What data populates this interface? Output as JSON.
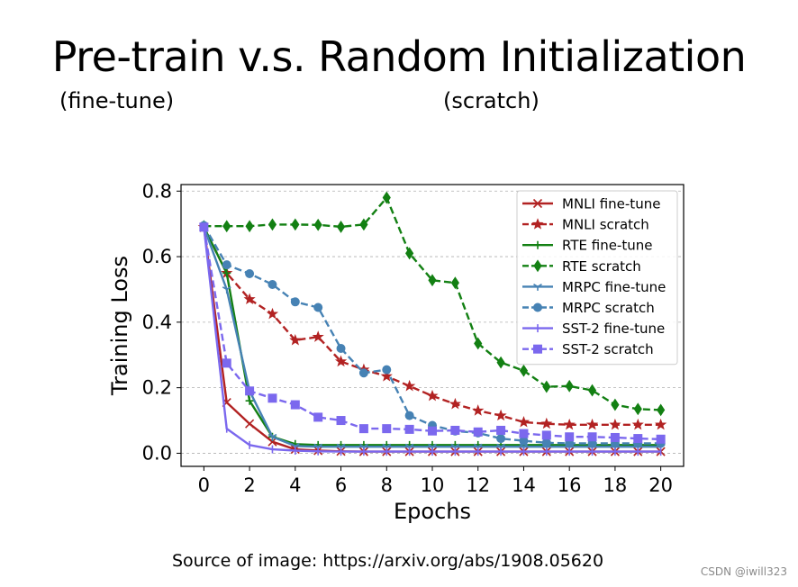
{
  "slide": {
    "title": "Pre-train v.s. Random Initialization",
    "subtitle_left": "(fine-tune)",
    "subtitle_right": "(scratch)",
    "source": "Source of image: https://arxiv.org/abs/1908.05620",
    "watermark": "CSDN @iwill323"
  },
  "chart_data": {
    "type": "line",
    "xlabel": "Epochs",
    "ylabel": "Training Loss",
    "xlim": [
      -1.0,
      21.0
    ],
    "ylim": [
      -0.04,
      0.82
    ],
    "xticks": [
      0,
      2,
      4,
      6,
      8,
      10,
      12,
      14,
      16,
      18,
      20
    ],
    "yticks": [
      0.0,
      0.2,
      0.4,
      0.6,
      0.8
    ],
    "ytick_labels": [
      "0.0",
      "0.2",
      "0.4",
      "0.6",
      "0.8"
    ],
    "grid": "horizontal dashed",
    "legend_position": "top-right",
    "x": [
      0,
      1,
      2,
      3,
      4,
      5,
      6,
      7,
      8,
      9,
      10,
      11,
      12,
      13,
      14,
      15,
      16,
      17,
      18,
      19,
      20
    ],
    "series": [
      {
        "name": "MNLI fine-tune",
        "color": "#b22222",
        "dash": "solid",
        "marker": "x",
        "values": [
          0.69,
          0.155,
          0.09,
          0.035,
          0.012,
          0.008,
          0.006,
          0.005,
          0.005,
          0.005,
          0.005,
          0.005,
          0.005,
          0.005,
          0.005,
          0.005,
          0.005,
          0.005,
          0.005,
          0.005,
          0.005
        ]
      },
      {
        "name": "MNLI scratch",
        "color": "#b22222",
        "dash": "dashed",
        "marker": "star",
        "values": [
          0.69,
          0.55,
          0.47,
          0.425,
          0.345,
          0.355,
          0.28,
          0.255,
          0.235,
          0.205,
          0.175,
          0.15,
          0.13,
          0.115,
          0.095,
          0.09,
          0.087,
          0.087,
          0.087,
          0.087,
          0.087
        ]
      },
      {
        "name": "RTE fine-tune",
        "color": "#138013",
        "dash": "solid",
        "marker": "plus",
        "values": [
          0.69,
          0.55,
          0.16,
          0.05,
          0.028,
          0.025,
          0.025,
          0.025,
          0.025,
          0.025,
          0.025,
          0.025,
          0.025,
          0.025,
          0.025,
          0.025,
          0.025,
          0.025,
          0.025,
          0.025,
          0.025
        ]
      },
      {
        "name": "RTE scratch",
        "color": "#138013",
        "dash": "dashed",
        "marker": "diamond",
        "values": [
          0.693,
          0.693,
          0.693,
          0.698,
          0.698,
          0.697,
          0.691,
          0.698,
          0.78,
          0.61,
          0.528,
          0.52,
          0.335,
          0.277,
          0.252,
          0.203,
          0.205,
          0.192,
          0.148,
          0.135,
          0.132
        ]
      },
      {
        "name": "MRPC fine-tune",
        "color": "#4682b4",
        "dash": "solid",
        "marker": "tri",
        "values": [
          0.69,
          0.5,
          0.19,
          0.05,
          0.022,
          0.02,
          0.02,
          0.02,
          0.02,
          0.02,
          0.02,
          0.02,
          0.02,
          0.02,
          0.02,
          0.02,
          0.02,
          0.02,
          0.02,
          0.02,
          0.02
        ]
      },
      {
        "name": "MRPC scratch",
        "color": "#4682b4",
        "dash": "dashed",
        "marker": "circle",
        "values": [
          0.695,
          0.575,
          0.548,
          0.515,
          0.462,
          0.445,
          0.32,
          0.245,
          0.255,
          0.115,
          0.085,
          0.068,
          0.062,
          0.045,
          0.038,
          0.032,
          0.03,
          0.03,
          0.03,
          0.03,
          0.03
        ]
      },
      {
        "name": "SST-2 fine-tune",
        "color": "#7b68ee",
        "dash": "solid",
        "marker": "vline",
        "values": [
          0.69,
          0.075,
          0.025,
          0.012,
          0.008,
          0.006,
          0.005,
          0.005,
          0.005,
          0.005,
          0.005,
          0.005,
          0.005,
          0.005,
          0.005,
          0.005,
          0.005,
          0.005,
          0.005,
          0.005,
          0.005
        ]
      },
      {
        "name": "SST-2 scratch",
        "color": "#7b68ee",
        "dash": "dashed",
        "marker": "square",
        "values": [
          0.69,
          0.275,
          0.19,
          0.168,
          0.148,
          0.11,
          0.1,
          0.075,
          0.075,
          0.073,
          0.068,
          0.07,
          0.065,
          0.07,
          0.06,
          0.055,
          0.05,
          0.05,
          0.048,
          0.045,
          0.043
        ]
      }
    ]
  }
}
